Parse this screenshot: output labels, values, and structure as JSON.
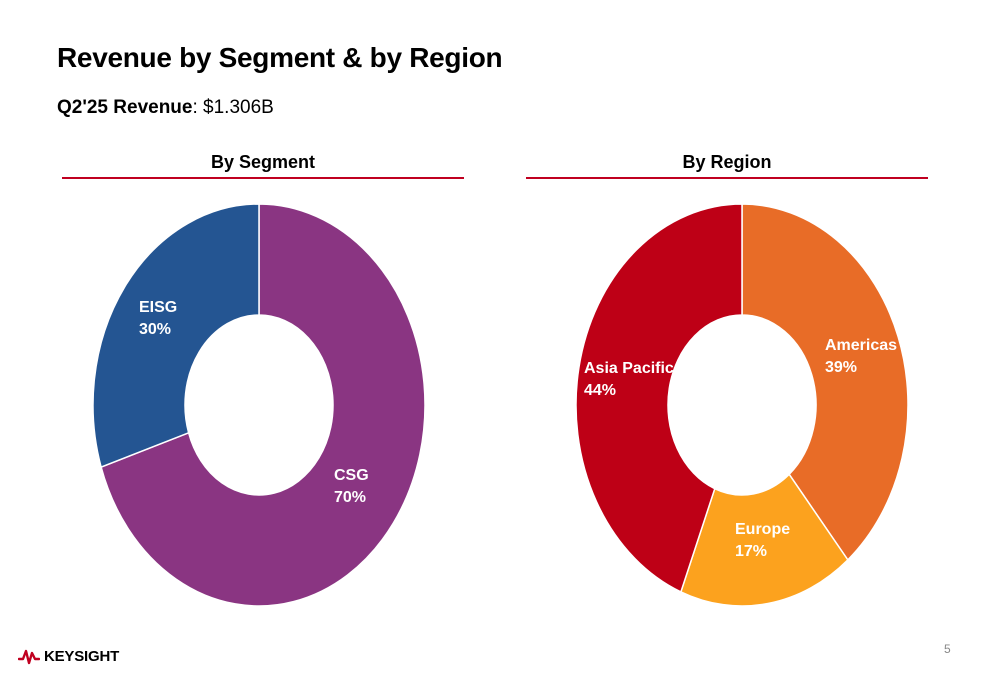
{
  "title": "Revenue by Segment & by Region",
  "subtitle": {
    "label": "Q2'25 Revenue",
    "sep": ": ",
    "value": "$1.306B"
  },
  "segment_heading": "By Segment",
  "region_heading": "By Region",
  "accent_color": "#c00020",
  "logo_text": "KEYSIGHT",
  "page_number": "5",
  "chart_data": [
    {
      "type": "pie",
      "title": "By Segment",
      "donut": true,
      "slices": [
        {
          "label": "CSG",
          "value": 70,
          "display": "70%",
          "color": "#8a3582"
        },
        {
          "label": "EISG",
          "value": 30,
          "display": "30%",
          "color": "#245592"
        }
      ]
    },
    {
      "type": "pie",
      "title": "By Region",
      "donut": true,
      "slices": [
        {
          "label": "Americas",
          "value": 39,
          "display": "39%",
          "color": "#e86c27"
        },
        {
          "label": "Europe",
          "value": 17,
          "display": "17%",
          "color": "#fca21e"
        },
        {
          "label": "Asia Pacific",
          "value": 44,
          "display": "44%",
          "color": "#be0016"
        }
      ]
    }
  ]
}
